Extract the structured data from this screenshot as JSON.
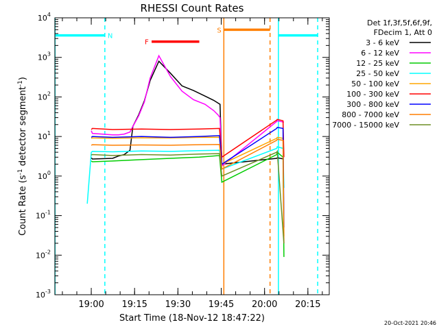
{
  "chart_data": {
    "type": "line",
    "title": "RHESSI Count Rates",
    "xlabel": "Start Time (18-Nov-12 18:47:22)",
    "ylabel_main": "Count Rate (s",
    "ylabel_sup1": "-1",
    "ylabel_mid": " detector segment",
    "ylabel_sup2": "-1",
    "ylabel_end": ")",
    "x_unit": "minutes after 18:47:22",
    "xlim": [
      0,
      95
    ],
    "ylim": [
      0.001,
      10000
    ],
    "y_scale": "log",
    "x_ticks": [
      {
        "label": "19:00",
        "x": 12.6
      },
      {
        "label": "19:15",
        "x": 27.6
      },
      {
        "label": "19:30",
        "x": 42.6
      },
      {
        "label": "19:45",
        "x": 57.6
      },
      {
        "label": "20:00",
        "x": 72.6
      },
      {
        "label": "20:15",
        "x": 87.6
      }
    ],
    "y_ticks": [
      {
        "base": "10",
        "exp": "-3",
        "v": 0.001
      },
      {
        "base": "10",
        "exp": "-2",
        "v": 0.01
      },
      {
        "base": "10",
        "exp": "-1",
        "v": 0.1
      },
      {
        "base": "10",
        "exp": "0",
        "v": 1
      },
      {
        "base": "10",
        "exp": "1",
        "v": 10
      },
      {
        "base": "10",
        "exp": "2",
        "v": 100
      },
      {
        "base": "10",
        "exp": "3",
        "v": 1000
      },
      {
        "base": "10",
        "exp": "4",
        "v": 10000
      }
    ],
    "legend_header": [
      "Det 1f,3f,5f,6f,9f,",
      "FDecim 1, Att 0"
    ],
    "legend_position": "right",
    "series": [
      {
        "name": "3 - 6 keV",
        "color": "#000000",
        "x": [
          12.6,
          13,
          20,
          22,
          24,
          26,
          27,
          29,
          31,
          33,
          36,
          40,
          44,
          48,
          52,
          55,
          56.5,
          57.2,
          57.8,
          76.8,
          77,
          79.3
        ],
        "y": [
          2.9,
          2.7,
          2.8,
          3.2,
          3.5,
          4.5,
          18,
          35,
          80,
          260,
          800,
          400,
          190,
          145,
          105,
          82,
          70,
          65,
          2,
          2.8,
          2.9,
          2.7
        ]
      },
      {
        "name": "6 - 12 keV",
        "color": "#ff00ff",
        "x": [
          12.6,
          13,
          20,
          22,
          24,
          26,
          27,
          29,
          31,
          33,
          36,
          40,
          44,
          48,
          52,
          55,
          56.5,
          57.2,
          57.8,
          76.8,
          77,
          79.3
        ],
        "y": [
          14,
          12,
          11,
          11,
          11.5,
          13,
          18,
          33,
          75,
          300,
          1100,
          330,
          140,
          85,
          65,
          45,
          35,
          30,
          1.8,
          24,
          25,
          23
        ]
      },
      {
        "name": "12 - 25 keV",
        "color": "#00cc00",
        "x": [
          12.6,
          13,
          20,
          30,
          40,
          50,
          57,
          57.8,
          76.8,
          77,
          79,
          79.3
        ],
        "y": [
          2.4,
          2.3,
          2.4,
          2.6,
          2.8,
          3.0,
          3.3,
          0.7,
          3.5,
          4,
          3,
          0.009
        ]
      },
      {
        "name": "25 - 50 keV",
        "color": "#00ffff",
        "x": [
          11.2,
          12.6,
          13,
          20,
          30,
          40,
          50,
          57,
          57.8,
          76.8,
          77,
          79,
          79.3
        ],
        "y": [
          0.2,
          4.0,
          4.2,
          4.1,
          4.3,
          4.2,
          4.4,
          4.5,
          1.5,
          5,
          5.5,
          5,
          0.5
        ]
      },
      {
        "name": "50 - 100 keV",
        "color": "#ffa500",
        "x": [
          12.6,
          13,
          20,
          30,
          40,
          50,
          57,
          57.8,
          76.8,
          77,
          79,
          79.3
        ],
        "y": [
          9.0,
          9.2,
          9.0,
          9.3,
          9.2,
          9.5,
          9.6,
          2,
          9,
          9.5,
          9,
          0.03
        ]
      },
      {
        "name": "100 - 300 keV",
        "color": "#ff0000",
        "x": [
          12.6,
          13,
          20,
          30,
          40,
          50,
          57,
          57.8,
          76.8,
          77,
          79,
          79.3
        ],
        "y": [
          15,
          16,
          15,
          15.5,
          15,
          15.5,
          16,
          3,
          26,
          27,
          25,
          3
        ]
      },
      {
        "name": "300 - 800 keV",
        "color": "#0000ff",
        "x": [
          12.6,
          13,
          20,
          30,
          40,
          50,
          57,
          57.8,
          76.8,
          77,
          79,
          79.3
        ],
        "y": [
          9.5,
          10,
          9.5,
          10,
          9.5,
          10,
          10.5,
          2,
          16,
          17,
          16,
          0.05
        ]
      },
      {
        "name": "800 - 7000 keV",
        "color": "#ff7f00",
        "x": [
          12.6,
          13,
          20,
          30,
          40,
          50,
          57,
          57.8,
          76.8,
          77,
          79,
          79.3
        ],
        "y": [
          6.0,
          6.2,
          6.0,
          6.1,
          6.0,
          6.2,
          6.3,
          1.5,
          8,
          8.5,
          8,
          0.02
        ]
      },
      {
        "name": "7000 - 15000 keV",
        "color": "#6b8e23",
        "x": [
          12.6,
          13,
          20,
          30,
          40,
          50,
          57,
          57.8,
          76.8,
          77,
          79.3
        ],
        "y": [
          3.4,
          3.5,
          3.3,
          3.5,
          3.4,
          3.6,
          3.7,
          1,
          4,
          4.2,
          0.02
        ]
      }
    ],
    "flag_bars": [
      {
        "label": "N",
        "color": "#00ffff",
        "y": 3600,
        "segments": [
          [
            0,
            17.3
          ],
          [
            77.4,
            91
          ]
        ]
      },
      {
        "label": "F",
        "color": "#ff0000",
        "y": 2500,
        "segments": [
          [
            33.5,
            50
          ]
        ]
      },
      {
        "label": "S",
        "color": "#ff7f00",
        "y": 5000,
        "segments": [
          [
            58.5,
            74.5
          ]
        ]
      }
    ],
    "interval_lines": [
      {
        "x": 0.05,
        "color": "#00ffff",
        "style": "solid"
      },
      {
        "x": 17.3,
        "color": "#00ffff",
        "style": "dashed"
      },
      {
        "x": 58.5,
        "color": "#ff7f00",
        "style": "solid"
      },
      {
        "x": 74.5,
        "color": "#ff7f00",
        "style": "dashed"
      },
      {
        "x": 77.4,
        "color": "#00ffff",
        "style": "solid"
      },
      {
        "x": 91.0,
        "color": "#00ffff",
        "style": "dashed"
      }
    ]
  },
  "timestamp": "20-Oct-2021 20:46"
}
